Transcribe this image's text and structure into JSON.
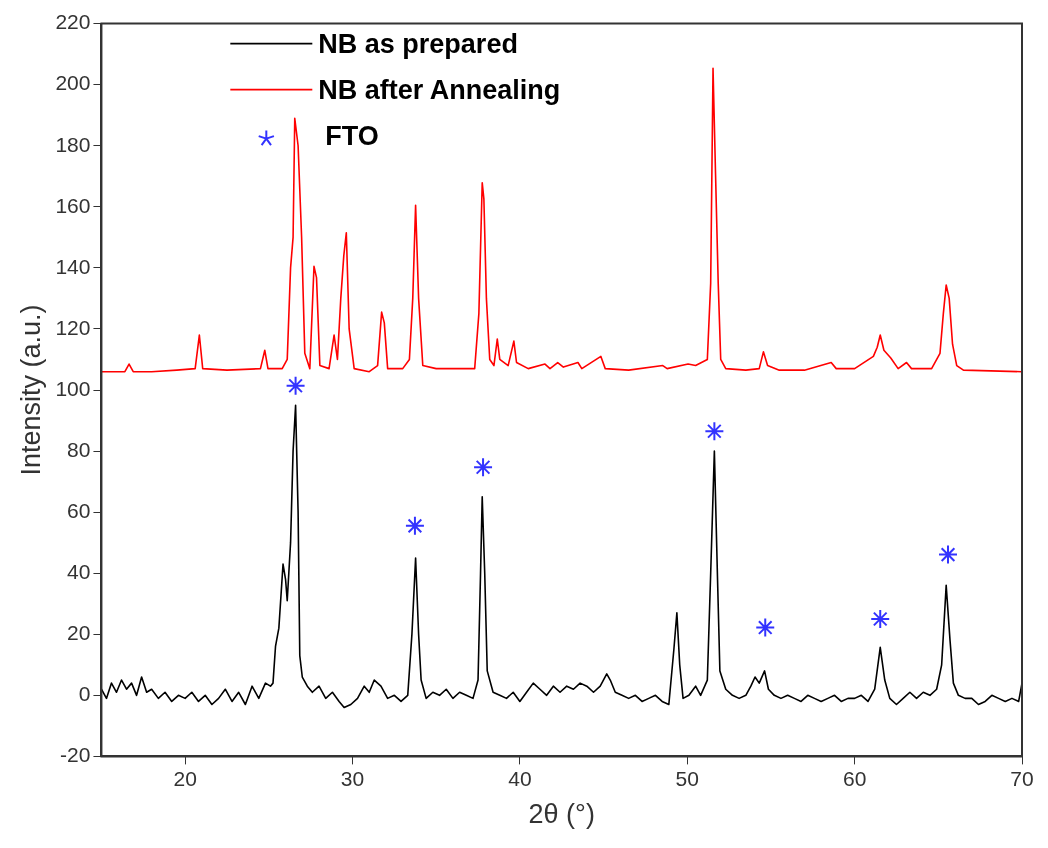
{
  "chart_data": {
    "type": "line",
    "xlabel": "2θ (°)",
    "ylabel": "Intensity (a.u.)",
    "xlim": [
      15,
      70
    ],
    "xticks": [
      20,
      30,
      40,
      50,
      60,
      70
    ],
    "ylim": [
      -20,
      220
    ],
    "yticks": [
      -20,
      0,
      20,
      40,
      60,
      80,
      100,
      120,
      140,
      160,
      180,
      200,
      220
    ],
    "grid": false,
    "legend": "top",
    "marker": "none",
    "line_style": "solid",
    "series": [
      {
        "name": "NB as prepared",
        "type": "line",
        "color": "#000000",
        "x": [
          15,
          15.3,
          15.6,
          15.9,
          16.2,
          16.5,
          16.8,
          17.1,
          17.4,
          17.7,
          18.0,
          18.4,
          18.8,
          19.2,
          19.6,
          20.0,
          20.4,
          20.8,
          21.2,
          21.6,
          22.0,
          22.4,
          22.8,
          23.2,
          23.6,
          24.0,
          24.4,
          24.8,
          25.1,
          25.25,
          25.4,
          25.6,
          25.85,
          26.0,
          26.1,
          26.3,
          26.45,
          26.6,
          26.75,
          26.85,
          27.0,
          27.3,
          27.6,
          28.0,
          28.4,
          28.8,
          29.2,
          29.5,
          29.9,
          30.3,
          30.7,
          31.0,
          31.3,
          31.7,
          32.1,
          32.5,
          32.9,
          33.3,
          33.55,
          33.77,
          33.95,
          34.1,
          34.4,
          34.8,
          35.2,
          35.6,
          36.0,
          36.4,
          36.8,
          37.2,
          37.5,
          37.65,
          37.75,
          37.9,
          38.05,
          38.4,
          38.8,
          39.2,
          39.6,
          40.0,
          40.4,
          40.8,
          41.2,
          41.6,
          42.0,
          42.4,
          42.8,
          43.2,
          43.6,
          44.0,
          44.4,
          44.8,
          45.19,
          45.4,
          45.7,
          46.1,
          46.5,
          46.9,
          47.3,
          47.7,
          48.1,
          48.5,
          48.9,
          49.2,
          49.38,
          49.55,
          49.75,
          50.1,
          50.5,
          50.8,
          51.2,
          51.4,
          51.62,
          51.8,
          51.95,
          52.3,
          52.7,
          53.1,
          53.5,
          53.8,
          54.05,
          54.3,
          54.62,
          54.85,
          55.2,
          55.6,
          56,
          56.4,
          56.8,
          57.2,
          57.6,
          58,
          58.4,
          58.8,
          59.2,
          59.6,
          60.0,
          60.4,
          60.8,
          61.2,
          61.53,
          61.8,
          62.1,
          62.5,
          62.9,
          63.3,
          63.7,
          64.1,
          64.5,
          64.9,
          65.2,
          65.47,
          65.7,
          65.9,
          66.2,
          66.6,
          67,
          67.4,
          67.8,
          68.2,
          68.6,
          69.0,
          69.4,
          69.8,
          70
        ],
        "values": [
          2,
          -1,
          4,
          1,
          5,
          2,
          4,
          0,
          6,
          1,
          2,
          -1,
          1,
          -2,
          0,
          -1,
          1,
          -2,
          0,
          -3,
          -1,
          2,
          -2,
          1,
          -3,
          3,
          -1,
          4,
          3,
          4,
          16,
          22,
          43,
          38,
          31,
          50,
          80,
          95,
          60,
          13,
          6,
          3,
          1,
          3,
          -1,
          1,
          -2,
          -4,
          -3,
          -1,
          3,
          1,
          5,
          3,
          -1,
          0,
          -2,
          0,
          20,
          45,
          20,
          5,
          -1,
          1,
          0,
          2,
          -1,
          1,
          0,
          -1,
          5,
          40,
          65,
          40,
          8,
          1,
          0,
          -1,
          1,
          -2,
          1,
          4,
          2,
          0,
          3,
          1,
          3,
          2,
          4,
          3,
          1,
          3,
          7,
          5,
          1,
          0,
          -1,
          0,
          -2,
          -1,
          0,
          -2,
          -3,
          15,
          27,
          10,
          -1,
          0,
          3,
          0,
          5,
          40,
          80,
          40,
          8,
          2,
          0,
          -1,
          0,
          3,
          6,
          4,
          8,
          2,
          0,
          -1,
          0,
          -1,
          -2,
          0,
          -1,
          -2,
          -1,
          0,
          -2,
          -1,
          -1,
          0,
          -2,
          2,
          15.7,
          5,
          -1,
          -3,
          -1,
          1,
          -1,
          1,
          0,
          2,
          10,
          36,
          18,
          4,
          0,
          -1,
          -1,
          -3,
          -2,
          0,
          -1,
          -2,
          -1,
          -2,
          4
        ]
      },
      {
        "name": "NB after Annealing",
        "type": "line",
        "color": "#ff0000",
        "x": [
          15,
          16.4,
          16.65,
          16.9,
          18.0,
          19.5,
          20.6,
          20.85,
          21.05,
          22.5,
          24.5,
          24.76,
          24.95,
          25.8,
          26.1,
          26.3,
          26.45,
          26.55,
          26.75,
          26.96,
          27.15,
          27.45,
          27.7,
          27.85,
          28.05,
          28.6,
          28.9,
          29.1,
          29.3,
          29.48,
          29.63,
          29.8,
          30.1,
          31.0,
          31.5,
          31.74,
          31.9,
          32.1,
          33.0,
          33.4,
          33.6,
          33.77,
          33.95,
          34.2,
          35.0,
          36.5,
          37.3,
          37.55,
          37.75,
          37.85,
          38.0,
          38.2,
          38.45,
          38.65,
          38.8,
          39.3,
          39.64,
          39.8,
          40.5,
          41.5,
          41.8,
          42.26,
          42.6,
          43.47,
          43.7,
          44.84,
          45.1,
          46.5,
          48.54,
          48.8,
          50.05,
          50.5,
          51.2,
          51.4,
          51.54,
          51.69,
          51.85,
          52.0,
          52.3,
          53.5,
          54.3,
          54.55,
          54.8,
          55.5,
          57,
          58.6,
          58.9,
          60,
          61.12,
          61.35,
          61.53,
          61.75,
          62.16,
          62.6,
          63.1,
          63.4,
          64.6,
          65.1,
          65.3,
          65.47,
          65.65,
          65.85,
          66.1,
          66.5,
          70
        ],
        "values": [
          106,
          106,
          108.5,
          106,
          106,
          106.5,
          107,
          118,
          107,
          106.5,
          107,
          113,
          107,
          107,
          110,
          140,
          150,
          189,
          180,
          150,
          112,
          107,
          140.5,
          136.8,
          108,
          107,
          118,
          110,
          130,
          144,
          151.5,
          120,
          107,
          106,
          108,
          125.5,
          122,
          107,
          107,
          110,
          130,
          160.5,
          130,
          108,
          107,
          107,
          107,
          125,
          167.9,
          162.5,
          130,
          110,
          108,
          116.7,
          110,
          108,
          116,
          109,
          107,
          108.5,
          107,
          109,
          107.5,
          109,
          107,
          111,
          107,
          106.5,
          108,
          107,
          108.5,
          108,
          110,
          135,
          205.4,
          170.8,
          135,
          110,
          107,
          106.5,
          107,
          112.5,
          108,
          106.5,
          106.5,
          109,
          107,
          107,
          111,
          114,
          118,
          113,
          110.5,
          107,
          109,
          107,
          107,
          112,
          125,
          134.4,
          130,
          115,
          108,
          106.5,
          106
        ]
      },
      {
        "name": "FTO",
        "type": "scatter",
        "marker": "cross",
        "color": "#3333ff",
        "x": [
          26.6,
          33.73,
          37.8,
          51.62,
          54.66,
          61.53,
          65.58
        ],
        "values": [
          101.4,
          55.5,
          74.7,
          86.5,
          22.2,
          25,
          46.1
        ]
      }
    ]
  }
}
